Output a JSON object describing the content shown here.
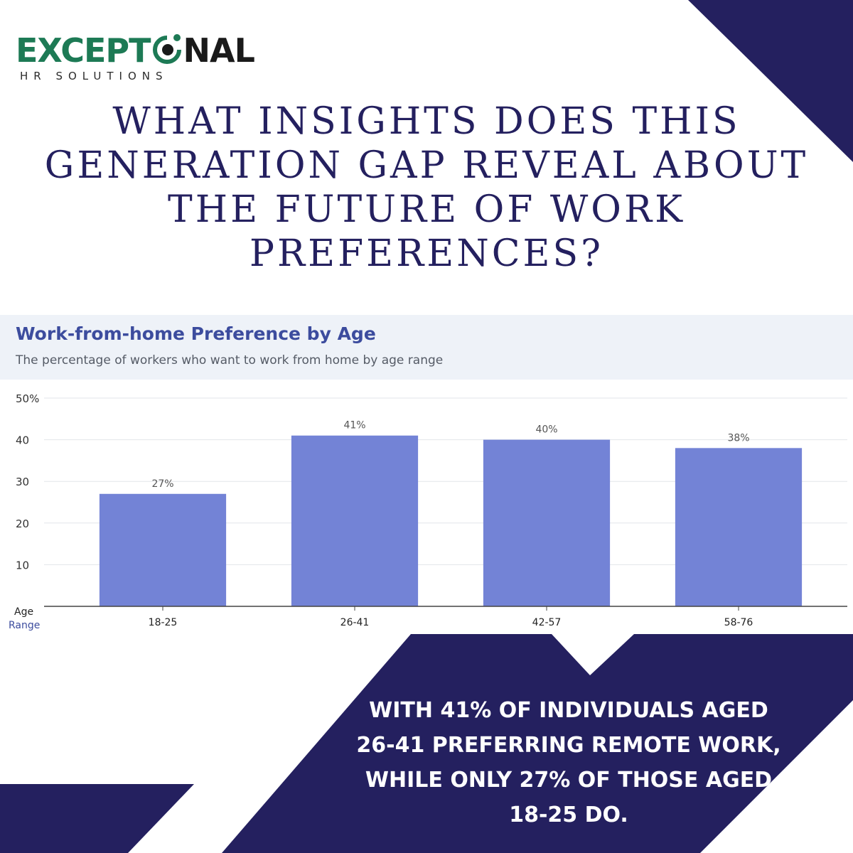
{
  "brand": {
    "logo_main_left": "EXCEPT",
    "logo_main_right": "NAL",
    "logo_sub": "HR SOLUTIONS",
    "logo_icon": "person-in-circle-icon",
    "green": "#1d7a55",
    "dark": "#1a1a1a"
  },
  "headline": {
    "lines": [
      "WHAT INSIGHTS DOES THIS",
      "GENERATION GAP REVEAL ABOUT",
      "THE FUTURE OF WORK",
      "PREFERENCES?"
    ],
    "color": "#24205f"
  },
  "chart_data": {
    "type": "bar",
    "title": "Work-from-home Preference by Age",
    "subtitle": "The percentage of workers who want to work from home by age range",
    "xlabel": "Age Range",
    "xlabel_lines": [
      "Age",
      "Range"
    ],
    "ylabel": "",
    "categories": [
      "18-25",
      "26-41",
      "42-57",
      "58-76"
    ],
    "values": [
      27,
      41,
      40,
      38
    ],
    "data_labels": [
      "27%",
      "41%",
      "40%",
      "38%"
    ],
    "ylim": [
      0,
      50
    ],
    "yticks": [
      10,
      20,
      30,
      40,
      50
    ],
    "ytick_labels": [
      "10",
      "20",
      "30",
      "40",
      "50%"
    ],
    "grid": true,
    "bar_color": "#7383d6"
  },
  "callout": {
    "lines": [
      "WITH 41% OF INDIVIDUALS AGED",
      "26-41 PREFERRING REMOTE WORK,",
      "WHILE ONLY 27% OF THOSE AGED",
      "18-25 DO."
    ]
  },
  "colors": {
    "navy": "#24205f",
    "header_bg": "#eef2f8",
    "title_blue": "#3c4c9e"
  }
}
